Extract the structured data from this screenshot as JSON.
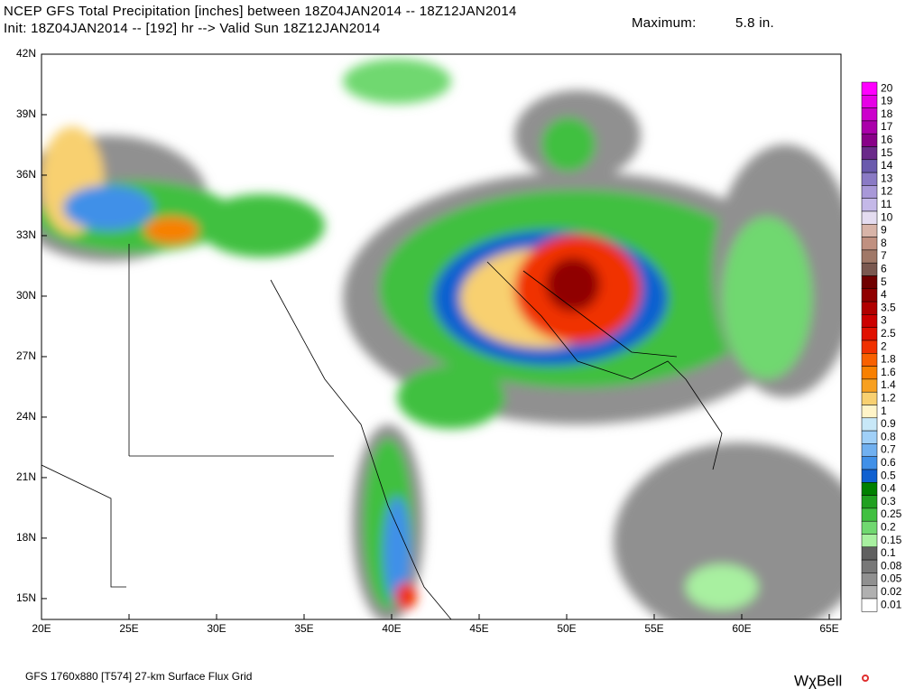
{
  "header": {
    "title_line1": "NCEP GFS Total Precipitation [inches] between 18Z04JAN2014 -- 18Z12JAN2014",
    "title_line2": "Init: 18Z04JAN2014 -- [192] hr --> Valid Sun 18Z12JAN2014",
    "maximum_label": "Maximum:",
    "maximum_value": "5.8 in."
  },
  "map": {
    "lat_labels": [
      {
        "value": 42,
        "label": "42N"
      },
      {
        "value": 39,
        "label": "39N"
      },
      {
        "value": 36,
        "label": "36N"
      },
      {
        "value": 33,
        "label": "33N"
      },
      {
        "value": 30,
        "label": "30N"
      },
      {
        "value": 27,
        "label": "27N"
      },
      {
        "value": 24,
        "label": "24N"
      },
      {
        "value": 21,
        "label": "21N"
      },
      {
        "value": 18,
        "label": "18N"
      },
      {
        "value": 15,
        "label": "15N"
      }
    ],
    "lon_labels": [
      {
        "value": 20,
        "label": "20E"
      },
      {
        "value": 25,
        "label": "25E"
      },
      {
        "value": 30,
        "label": "30E"
      },
      {
        "value": 35,
        "label": "35E"
      },
      {
        "value": 40,
        "label": "40E"
      },
      {
        "value": 45,
        "label": "45E"
      },
      {
        "value": 50,
        "label": "50E"
      },
      {
        "value": 55,
        "label": "55E"
      },
      {
        "value": 60,
        "label": "60E"
      },
      {
        "value": 65,
        "label": "65E"
      }
    ]
  },
  "legend": {
    "levels": [
      {
        "label": "20",
        "color": "#ff00ff"
      },
      {
        "label": "19",
        "color": "#e600e6"
      },
      {
        "label": "18",
        "color": "#cc00cc"
      },
      {
        "label": "17",
        "color": "#aa00aa"
      },
      {
        "label": "16",
        "color": "#880088"
      },
      {
        "label": "15",
        "color": "#6a2a8a"
      },
      {
        "label": "14",
        "color": "#6a5aad"
      },
      {
        "label": "13",
        "color": "#8a7ac5"
      },
      {
        "label": "12",
        "color": "#a898d8"
      },
      {
        "label": "11",
        "color": "#c4b8e8"
      },
      {
        "label": "10",
        "color": "#e4dcf0"
      },
      {
        "label": "9",
        "color": "#d8b4a8"
      },
      {
        "label": "8",
        "color": "#c09080"
      },
      {
        "label": "7",
        "color": "#a07868"
      },
      {
        "label": "6",
        "color": "#7a5850"
      },
      {
        "label": "5",
        "color": "#700000"
      },
      {
        "label": "4",
        "color": "#900000"
      },
      {
        "label": "3.5",
        "color": "#b00000"
      },
      {
        "label": "3",
        "color": "#cc0000"
      },
      {
        "label": "2.5",
        "color": "#e01000"
      },
      {
        "label": "2",
        "color": "#f03000"
      },
      {
        "label": "1.8",
        "color": "#f86000"
      },
      {
        "label": "1.6",
        "color": "#f88000"
      },
      {
        "label": "1.4",
        "color": "#f8a020"
      },
      {
        "label": "1.2",
        "color": "#f8d070"
      },
      {
        "label": "1",
        "color": "#fff4c8"
      },
      {
        "label": "0.9",
        "color": "#c8e8f8"
      },
      {
        "label": "0.8",
        "color": "#a0d0f8"
      },
      {
        "label": "0.7",
        "color": "#70b0f0"
      },
      {
        "label": "0.6",
        "color": "#4090e8"
      },
      {
        "label": "0.5",
        "color": "#1060d0"
      },
      {
        "label": "0.4",
        "color": "#008000"
      },
      {
        "label": "0.3",
        "color": "#20a020"
      },
      {
        "label": "0.25",
        "color": "#40c040"
      },
      {
        "label": "0.2",
        "color": "#70d870"
      },
      {
        "label": "0.15",
        "color": "#a8f0a0"
      },
      {
        "label": "0.1",
        "color": "#606060"
      },
      {
        "label": "0.08",
        "color": "#787878"
      },
      {
        "label": "0.05",
        "color": "#909090"
      },
      {
        "label": "0.02",
        "color": "#b0b0b0"
      },
      {
        "label": "0.01",
        "color": "#ffffff"
      }
    ]
  },
  "footer": {
    "model": "GFS 1760x880 [T574] 27-km Surface Flux Grid",
    "brand": "WχBell"
  }
}
